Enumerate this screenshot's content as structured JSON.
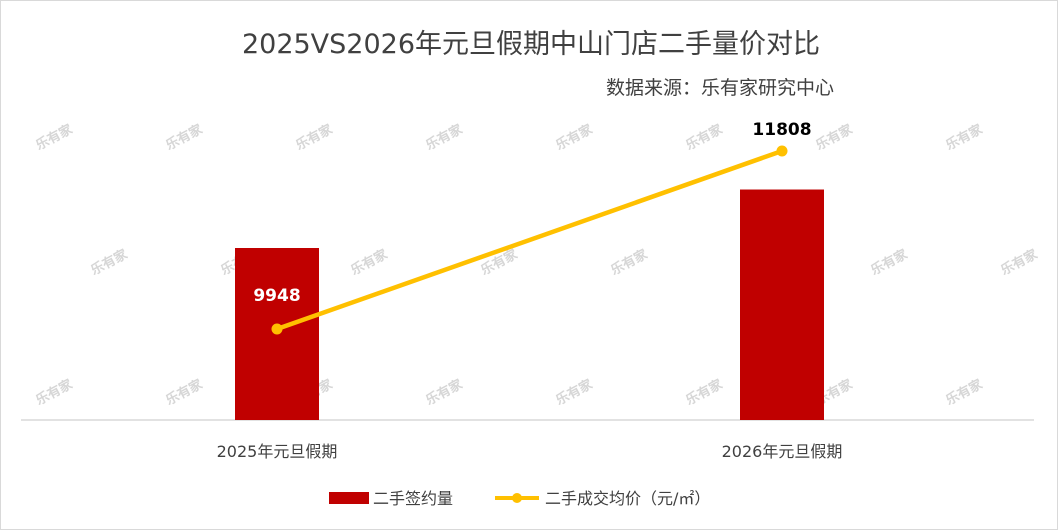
{
  "title": "2025VS2026年元旦假期中山门店二手量价对比",
  "subtitle": "数据来源：乐有家研究中心",
  "watermark": "乐有家",
  "colors": {
    "bar": "#c00000",
    "line": "#ffc000",
    "axis": "#d9d9d9",
    "text": "#404040"
  },
  "chart_data": {
    "type": "bar",
    "categories": [
      "2025年元旦假期",
      "2026年元旦假期"
    ],
    "series": [
      {
        "name": "二手签约量",
        "type": "bar",
        "values": [
          1.0,
          1.34
        ],
        "color": "#c00000"
      },
      {
        "name": "二手成交均价（元/㎡）",
        "type": "line",
        "values": [
          9948,
          11808
        ],
        "color": "#ffc000"
      }
    ],
    "data_labels": [
      "9948",
      "11808"
    ],
    "legend_position": "bottom",
    "grid": false
  }
}
